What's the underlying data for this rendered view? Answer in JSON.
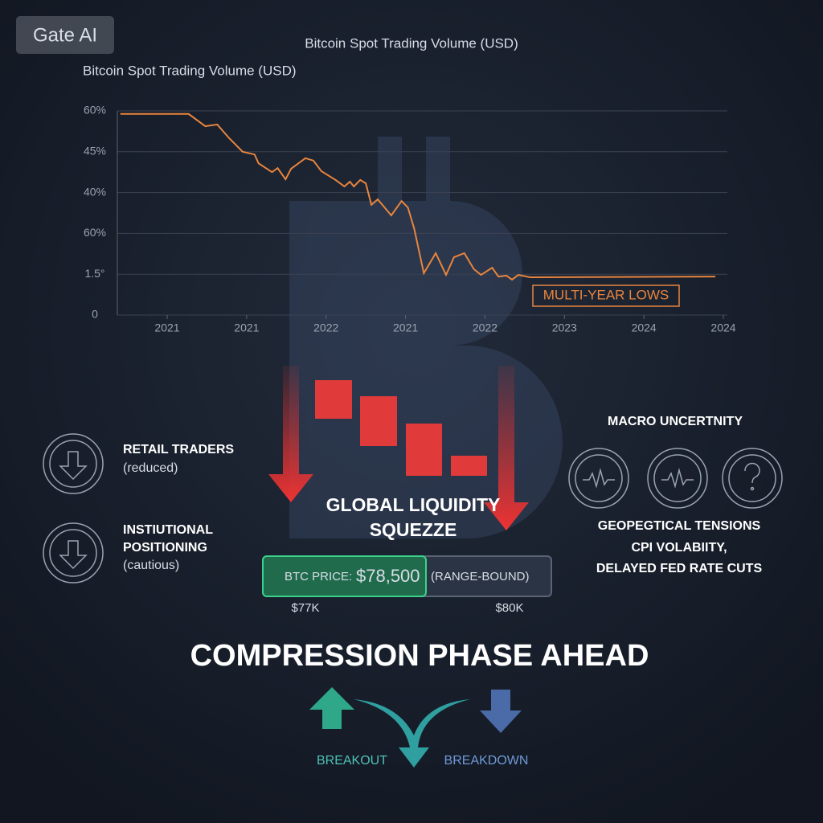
{
  "brand": "Gate AI",
  "chart_data": {
    "type": "line",
    "title": "Bitcoin Spot Trading Volume (USD)",
    "subtitle": "Bitcoin Spot Trading Volume (USD)",
    "xlim": [
      0.4,
      8
    ],
    "xticks": [
      {
        "value": 1,
        "label": "2021"
      },
      {
        "value": 2,
        "label": "2021"
      },
      {
        "value": 3,
        "label": "2022"
      },
      {
        "value": 4,
        "label": "2021"
      },
      {
        "value": 5,
        "label": "2022"
      },
      {
        "value": 6,
        "label": "2023"
      },
      {
        "value": 7,
        "label": "2024"
      },
      {
        "value": 8,
        "label": "2024"
      }
    ],
    "ylim": [
      0,
      60
    ],
    "yticks": [
      0,
      {
        "value": 12,
        "label": "1.5°"
      },
      {
        "value": 24,
        "label": "60%"
      },
      {
        "value": 36,
        "label": "40%"
      },
      {
        "value": 48,
        "label": "45%"
      },
      {
        "value": 60,
        "label": "60%"
      }
    ],
    "grid": true,
    "series": [
      {
        "color": "#e8853e",
        "x": [
          0.41,
          1.27,
          1.48,
          1.63,
          1.78,
          1.95,
          2.1,
          2.15,
          2.32,
          2.39,
          2.49,
          2.56,
          2.74,
          2.84,
          2.94,
          3.12,
          3.23,
          3.3,
          3.35,
          3.43,
          3.5,
          3.57,
          3.65,
          3.82,
          3.95,
          4.03,
          4.11,
          4.23,
          4.38,
          4.51,
          4.61,
          4.74,
          4.86,
          4.95,
          5.09,
          5.17,
          5.27,
          5.34,
          5.42,
          5.57,
          7.9
        ],
        "values": [
          59.1,
          59.1,
          55.5,
          56.0,
          52.0,
          48.0,
          47.2,
          44.6,
          42.0,
          43.2,
          39.9,
          43.0,
          46.1,
          45.4,
          42.3,
          39.7,
          37.8,
          39.2,
          37.8,
          39.7,
          38.7,
          32.4,
          34.0,
          29.3,
          33.5,
          31.6,
          25.3,
          12.3,
          18.2,
          11.8,
          17.0,
          18.2,
          13.5,
          11.8,
          13.9,
          11.3,
          11.6,
          10.4,
          11.8,
          11.1,
          11.3
        ]
      }
    ],
    "annotation": "MULTI-YEAR LOWS"
  },
  "left": {
    "items": [
      {
        "title": "RETAIL TRADERS",
        "note": "(reduced)"
      },
      {
        "title": [
          "INSTIUTIONAL",
          "POSITIONING"
        ],
        "note": "(cautious)"
      }
    ]
  },
  "center": {
    "title": [
      "GLOBAL LIQUIDITY",
      "SQUEZZE"
    ],
    "price_label": "BTC PRICE:",
    "price": "$78,500",
    "price_note": "(RANGE-BOUND)",
    "low": "$77K",
    "high": "$80K"
  },
  "right": {
    "title": "MACRO UNCERTNITY",
    "lines": [
      "GEOPEGTICAL TENSIONS",
      "CPI VOLABIITY,",
      "DELAYED FED RATE CUTS"
    ]
  },
  "footer": {
    "title": "COMPRESSION PHASE AHEAD",
    "up": "BREAKOUT",
    "down": "BREAKDOWN"
  }
}
